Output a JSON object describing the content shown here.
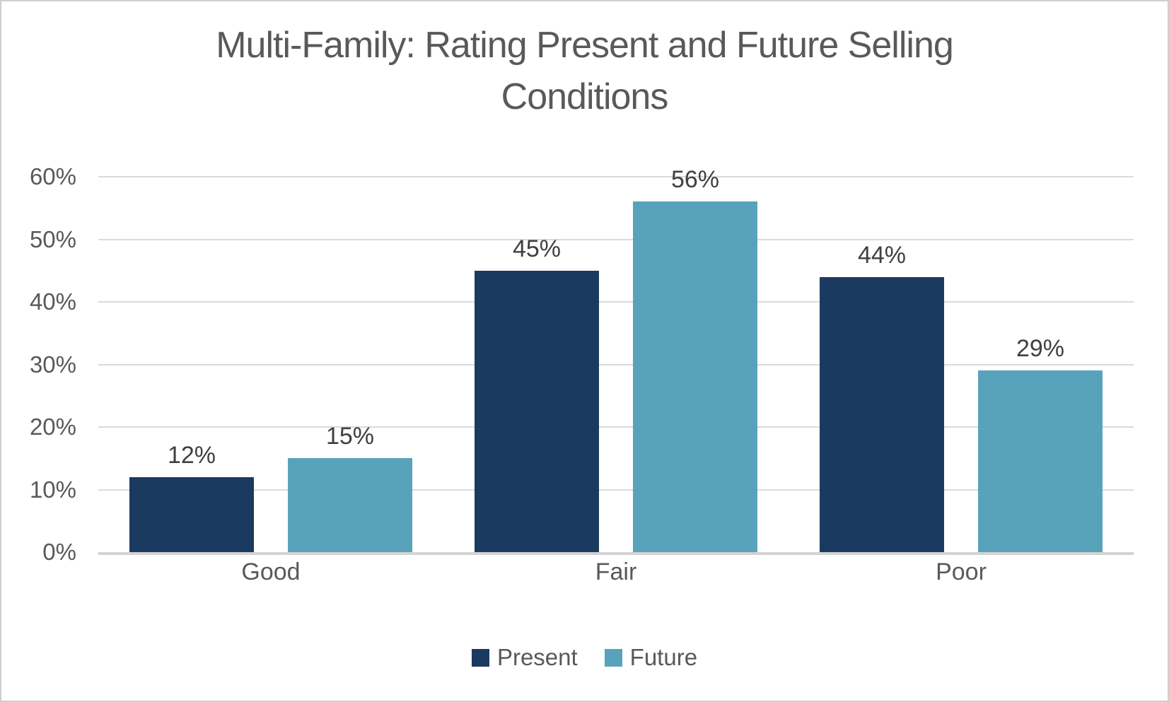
{
  "chart_data": {
    "type": "bar",
    "title": "Multi-Family: Rating Present and Future Selling Conditions",
    "categories": [
      "Good",
      "Fair",
      "Poor"
    ],
    "series": [
      {
        "name": "Present",
        "color": "#1B3A5F",
        "values": [
          12,
          45,
          44
        ],
        "labels": [
          "12%",
          "45%",
          "44%"
        ]
      },
      {
        "name": "Future",
        "color": "#58A3BB",
        "values": [
          15,
          56,
          29
        ],
        "labels": [
          "15%",
          "56%",
          "29%"
        ]
      }
    ],
    "y_axis": {
      "tick_values": [
        0,
        10,
        20,
        30,
        40,
        50,
        60
      ],
      "tick_labels": [
        "0%",
        "10%",
        "20%",
        "30%",
        "40%",
        "50%",
        "60%"
      ],
      "min": 0,
      "max": 60
    },
    "grid": true,
    "legend_position": "bottom",
    "data_labels": true
  },
  "colors": {
    "grid": "#DBDBDB",
    "axis_line": "#D3D3D3",
    "title_text": "#595959",
    "axis_text": "#595959",
    "data_label_text": "#404040",
    "border": "#CFCFCF",
    "background": "#FFFFFF"
  }
}
